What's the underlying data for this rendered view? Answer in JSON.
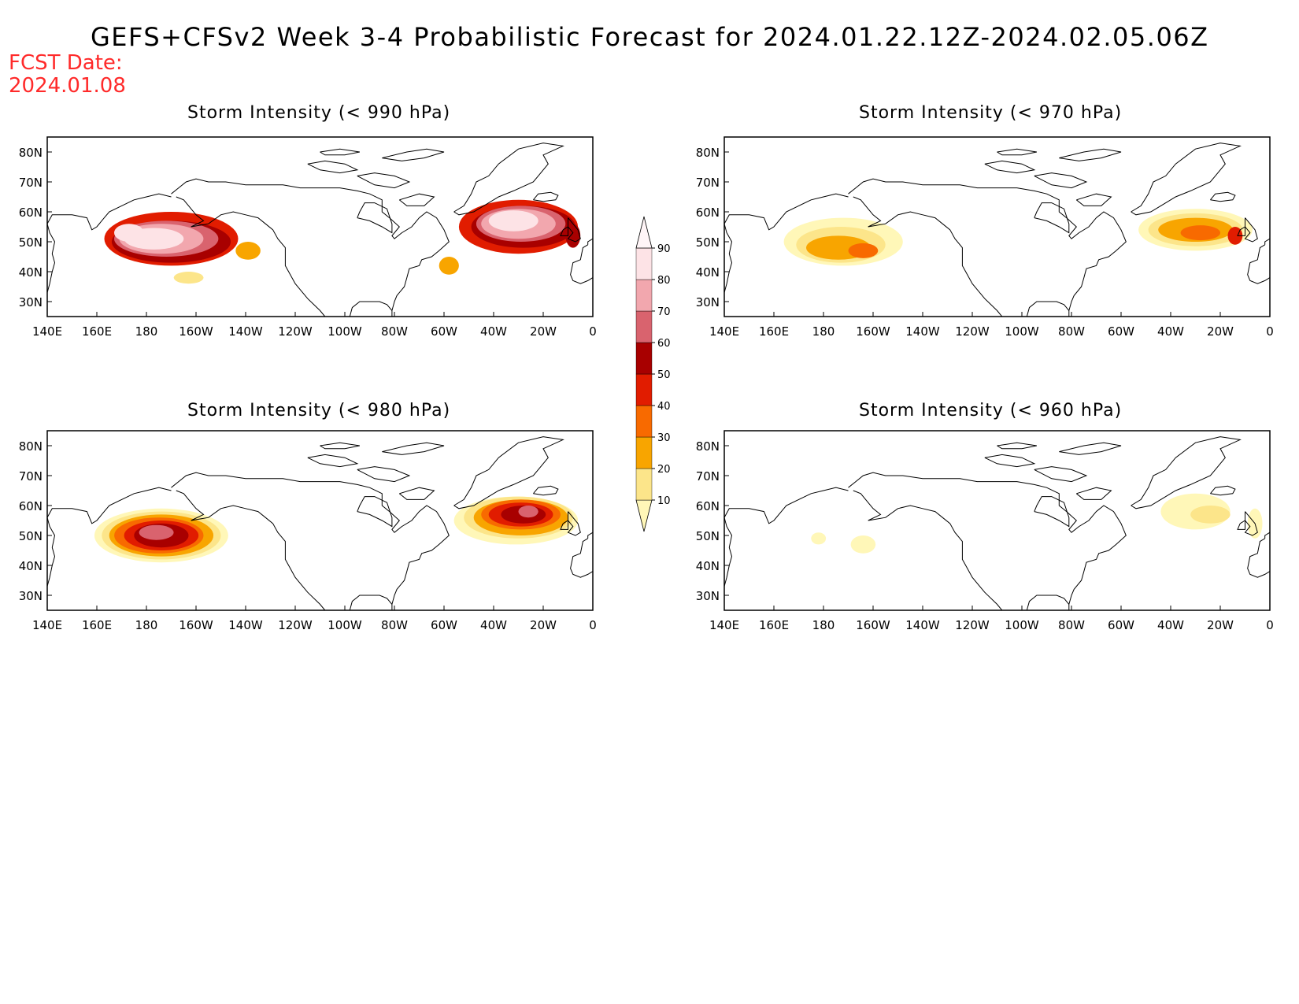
{
  "title": "GEFS+CFSv2 Week 3-4 Probabilistic Forecast for 2024.01.22.12Z-2024.02.05.06Z",
  "forecast_date_label": "FCST Date:",
  "forecast_date": "2024.01.08",
  "panels": [
    {
      "id": "p990",
      "title": "Storm Intensity (< 990 hPa)"
    },
    {
      "id": "p970",
      "title": "Storm Intensity (< 970 hPa)"
    },
    {
      "id": "p980",
      "title": "Storm Intensity (< 980 hPa)"
    },
    {
      "id": "p960",
      "title": "Storm Intensity (< 960 hPa)"
    }
  ],
  "lon_ticks": [
    "140E",
    "160E",
    "180",
    "160W",
    "140W",
    "120W",
    "100W",
    "80W",
    "60W",
    "40W",
    "20W",
    "0"
  ],
  "lat_ticks": [
    "80N",
    "70N",
    "60N",
    "50N",
    "40N",
    "30N"
  ],
  "colorbar": {
    "levels": [
      10,
      20,
      30,
      40,
      50,
      60,
      70,
      80,
      90
    ],
    "colors": [
      "#fff7b8",
      "#fce58a",
      "#f8a500",
      "#f86a00",
      "#e11c00",
      "#a80000",
      "#d9636e",
      "#f2a7ae",
      "#fde3e6",
      "#fff5f7"
    ]
  },
  "chart_data": [
    {
      "type": "heatmap",
      "title": "Storm Intensity (< 990 hPa)",
      "lon_range": [
        "140E",
        "0"
      ],
      "lat_range": [
        "25N",
        "85N"
      ],
      "regions": [
        {
          "area": "North Pacific",
          "peak_prob": 90
        },
        {
          "area": "North Atlantic",
          "peak_prob": 90
        }
      ]
    },
    {
      "type": "heatmap",
      "title": "Storm Intensity (< 970 hPa)",
      "lon_range": [
        "140E",
        "0"
      ],
      "lat_range": [
        "25N",
        "85N"
      ],
      "regions": [
        {
          "area": "North Pacific",
          "peak_prob": 40
        },
        {
          "area": "North Atlantic",
          "peak_prob": 50
        }
      ]
    },
    {
      "type": "heatmap",
      "title": "Storm Intensity (< 980 hPa)",
      "lon_range": [
        "140E",
        "0"
      ],
      "lat_range": [
        "25N",
        "85N"
      ],
      "regions": [
        {
          "area": "North Pacific",
          "peak_prob": 80
        },
        {
          "area": "North Atlantic",
          "peak_prob": 80
        }
      ]
    },
    {
      "type": "heatmap",
      "title": "Storm Intensity (< 960 hPa)",
      "lon_range": [
        "140E",
        "0"
      ],
      "lat_range": [
        "25N",
        "85N"
      ],
      "regions": [
        {
          "area": "North Pacific",
          "peak_prob": 20
        },
        {
          "area": "North Atlantic",
          "peak_prob": 30
        }
      ]
    }
  ]
}
